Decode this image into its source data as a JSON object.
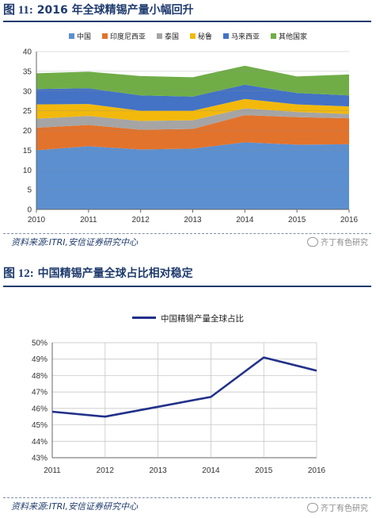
{
  "figure1": {
    "number": "图 11:",
    "title": "2016 年全球精锡产量小幅回升",
    "source": "资料来源:ITRI,安信证券研究中心",
    "watermark": "齐丁有色研究"
  },
  "figure2": {
    "number": "图 12:",
    "title": "中国精锡产量全球占比相对稳定",
    "source": "资料来源:ITRI,安信证券研究中心",
    "watermark": "齐丁有色研究"
  },
  "chart_data": [
    {
      "type": "area",
      "stacked": true,
      "x": [
        "2010",
        "2011",
        "2012",
        "2013",
        "2014",
        "2015",
        "2016"
      ],
      "yticks": [
        "0",
        "5",
        "10",
        "15",
        "20",
        "25",
        "30",
        "35",
        "40"
      ],
      "ylim": [
        0,
        40
      ],
      "grid": true,
      "legend_position": "top",
      "series": [
        {
          "name": "中国",
          "color": "#5b8fd0",
          "values": [
            15.0,
            16.0,
            15.2,
            15.4,
            17.0,
            16.4,
            16.5
          ]
        },
        {
          "name": "印度尼西亚",
          "color": "#e2732c",
          "values": [
            5.7,
            5.4,
            5.0,
            5.0,
            6.9,
            7.0,
            6.6
          ]
        },
        {
          "name": "泰国",
          "color": "#a5a5a5",
          "values": [
            2.3,
            2.3,
            2.2,
            2.2,
            1.7,
            1.3,
            1.1
          ]
        },
        {
          "name": "秘鲁",
          "color": "#f2b90c",
          "values": [
            3.6,
            3.0,
            2.6,
            2.4,
            2.4,
            1.9,
            1.9
          ]
        },
        {
          "name": "马来西亚",
          "color": "#4472c4",
          "values": [
            3.9,
            4.0,
            3.9,
            3.6,
            3.6,
            2.9,
            2.8
          ]
        },
        {
          "name": "其他国家",
          "color": "#70ad47",
          "values": [
            4.0,
            4.2,
            4.9,
            4.9,
            4.8,
            4.2,
            5.3
          ]
        }
      ]
    },
    {
      "type": "line",
      "x": [
        "2011",
        "2012",
        "2013",
        "2014",
        "2015",
        "2016"
      ],
      "yticks": [
        "43%",
        "44%",
        "45%",
        "46%",
        "47%",
        "48%",
        "49%",
        "50%"
      ],
      "ylim": [
        43,
        50
      ],
      "grid": true,
      "legend_position": "top",
      "series": [
        {
          "name": "中国精锡产量全球占比",
          "color": "#22318a",
          "values": [
            45.8,
            45.5,
            46.1,
            46.7,
            49.1,
            48.3
          ]
        }
      ]
    }
  ]
}
